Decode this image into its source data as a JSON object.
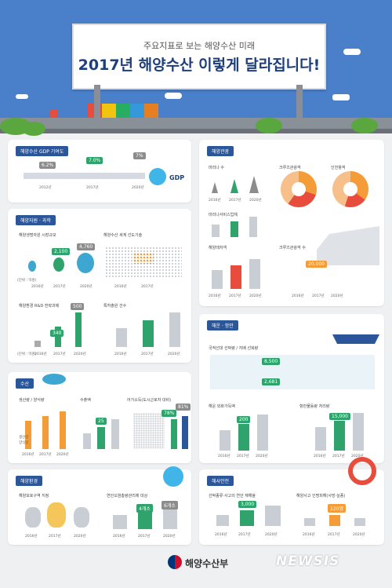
{
  "header": {
    "subtitle": "주요지표로 보는 해양수산 미래",
    "title": "2017년 해양수산 이렇게 달라집니다!"
  },
  "sections": {
    "gdp": {
      "tag": "해양수산 GDP 기여도",
      "values": [
        "6.2%",
        "7.0%",
        "7%"
      ],
      "years": [
        "2012년",
        "2017년",
        "2020년"
      ],
      "label": "GDP"
    },
    "resources": {
      "tag": "해양자원 · 과학",
      "sub1": "해양생명자원 시장규모",
      "sub1_values": [
        "2,100",
        "4,760"
      ],
      "sub1_unit": "(단위 : 억원)",
      "sub1_years": [
        "2016년",
        "2017년",
        "2020년"
      ],
      "sub2": "해양수산 세계 선도기술",
      "sub2_years": [
        "2016년",
        "2017년"
      ],
      "sub3": "해양환경 R&D 전략과제",
      "sub3_values": [
        "340",
        "500"
      ],
      "sub3_years": [
        "2016년",
        "2017년",
        "2020년"
      ],
      "sub4": "특허출원 건수",
      "sub4_years": [
        "2016년",
        "2017년",
        "2020년"
      ],
      "unit_small": "(단위 : 억원)"
    },
    "fisheries": {
      "tag": "수산",
      "sub1": "생산량 / 양식량",
      "sub2": "수출액",
      "sub3": "어가소득(도시근로자 대비)",
      "values": [
        "25",
        "78%",
        "81%"
      ],
      "years": [
        "2016년",
        "2017년",
        "2020년"
      ],
      "legend": [
        "생산량",
        "양식량"
      ]
    },
    "marine_env": {
      "tag": "해양환경",
      "sub1": "해양보호구역 지정",
      "sub2": "연안오염총량관리제 대상",
      "values": [
        "4개소",
        "6개소"
      ],
      "years": [
        "2016년",
        "2017년",
        "2020년"
      ]
    },
    "tourism": {
      "tag": "해양관광",
      "sub1": "마리나 수",
      "sub2": "크루즈관광객",
      "sub3": "인천항객",
      "sub4": "마리나서비스업체",
      "sub5": "해양레저객",
      "sub6": "크루즈관광객 수",
      "years": [
        "2016년",
        "2017년",
        "2020년"
      ],
      "highlight": "20,000"
    },
    "shipping": {
      "tag": "해운 · 항만",
      "sub1": "국적선대 선박량 / 지배 선복량",
      "sub2": "해운 외화가득액",
      "sub3": "항만물동량 처리량",
      "values": [
        "8,500",
        "2,681",
        "200",
        "15,000"
      ],
      "years": [
        "2016년",
        "2017년",
        "2020년"
      ]
    },
    "safety": {
      "tag": "해사안전",
      "sub1": "선박종류·사고의 연안 재해율",
      "sub2": "해양사고 인명피해(사망·실종)",
      "values": [
        "3,000",
        "120명"
      ],
      "years": [
        "2016년",
        "2017년",
        "2020년"
      ]
    }
  },
  "footer": {
    "ministry": "해양수산부",
    "watermark": "NEWSIS"
  }
}
